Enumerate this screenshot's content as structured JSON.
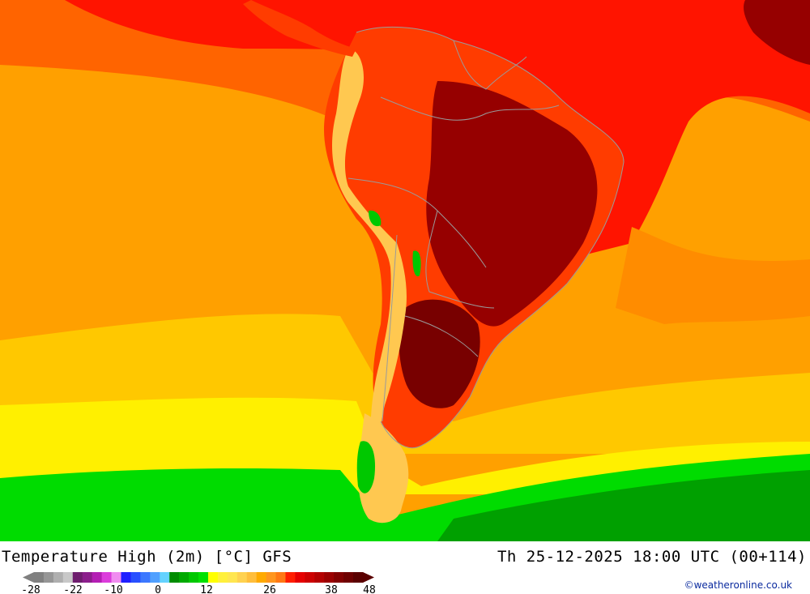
{
  "title": "Temperature High (2m) [°C] GFS",
  "datetime": "Th 25-12-2025 18:00 UTC (00+114)",
  "credit": "©weatheronline.co.uk",
  "legend": {
    "colors": [
      "#808080",
      "#969696",
      "#afafaf",
      "#c8c8c8",
      "#6e1e6e",
      "#8c1e8c",
      "#b41eb4",
      "#dc3cdc",
      "#f08cf0",
      "#1e1eff",
      "#2850ff",
      "#3c78ff",
      "#50a0ff",
      "#64d2ff",
      "#008c00",
      "#00aa00",
      "#00c800",
      "#00e100",
      "#ffff00",
      "#fff03c",
      "#ffe650",
      "#ffd250",
      "#ffbe3c",
      "#ffaa00",
      "#ff961e",
      "#ff7814",
      "#ff1e00",
      "#e60000",
      "#cd0000",
      "#b40000",
      "#9b0000",
      "#820000",
      "#6e0000",
      "#5a0000"
    ],
    "tick_labels": [
      "-28",
      "-22",
      "-10",
      "0",
      "12",
      "26",
      "38",
      "48"
    ]
  },
  "map": {
    "region": "South America",
    "ocean_background_color": "#ffa000",
    "bands": [
      {
        "name": "tropical-atlantic",
        "color": "#ff1400"
      },
      {
        "name": "north-pacific",
        "color": "#ff6400"
      },
      {
        "name": "pacific-mid",
        "color": "#ff8c00"
      },
      {
        "name": "south-warm",
        "color": "#ffc800"
      },
      {
        "name": "south-cool",
        "color": "#fff000"
      },
      {
        "name": "southern-ocean-green",
        "color": "#00dc00"
      },
      {
        "name": "southern-ocean-dark-green",
        "color": "#00a000"
      }
    ],
    "land_colors": {
      "hot_interior": "#960000",
      "very_hot": "#780000",
      "andes": "#ffc850",
      "andes_snow": "#00c800",
      "coast": "#ff3c00"
    }
  }
}
